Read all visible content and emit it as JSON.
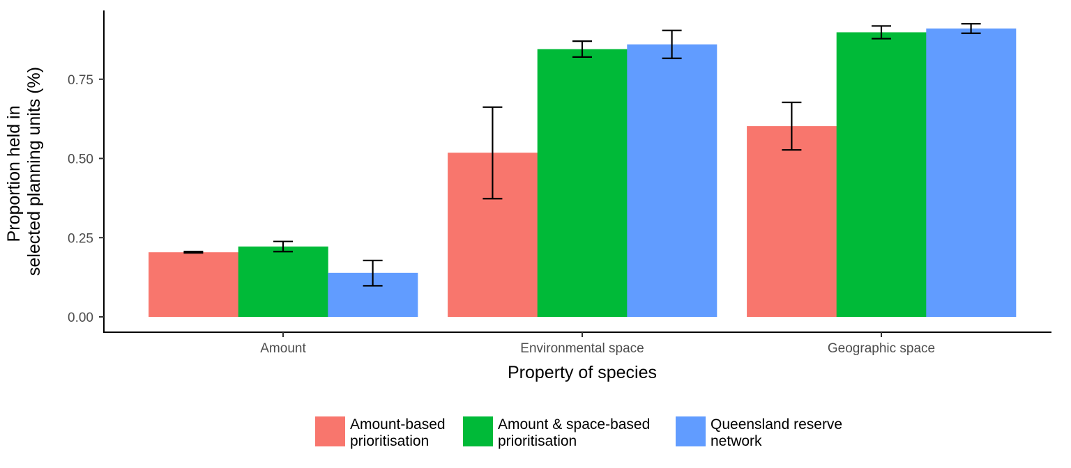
{
  "chart_data": {
    "type": "bar",
    "title": "",
    "xlabel": "Property of species",
    "ylabel_lines": [
      "Proportion held in",
      "selected planning units (%)"
    ],
    "categories": [
      "Amount",
      "Environmental space",
      "Geographic space"
    ],
    "ylim": [
      0,
      0.97
    ],
    "yticks": [
      0,
      0.25,
      0.5,
      0.75
    ],
    "ytick_labels": [
      "0.00",
      "0.25",
      "0.50",
      "0.75"
    ],
    "grid": false,
    "legend_position": "bottom",
    "series": [
      {
        "name_lines": [
          "Amount-based",
          "prioritisation"
        ],
        "color": "#F8766D",
        "values": [
          0.204,
          0.518,
          0.602
        ],
        "err_low": [
          0.202,
          0.373,
          0.527
        ],
        "err_high": [
          0.206,
          0.662,
          0.677
        ]
      },
      {
        "name_lines": [
          "Amount & space-based",
          "prioritisation"
        ],
        "color": "#00BA38",
        "values": [
          0.222,
          0.845,
          0.898
        ],
        "err_low": [
          0.206,
          0.82,
          0.878
        ],
        "err_high": [
          0.238,
          0.87,
          0.918
        ]
      },
      {
        "name_lines": [
          "Queensland reserve",
          "network"
        ],
        "color": "#619CFF",
        "values": [
          0.139,
          0.86,
          0.91
        ],
        "err_low": [
          0.098,
          0.816,
          0.895
        ],
        "err_high": [
          0.178,
          0.904,
          0.925
        ]
      }
    ]
  }
}
